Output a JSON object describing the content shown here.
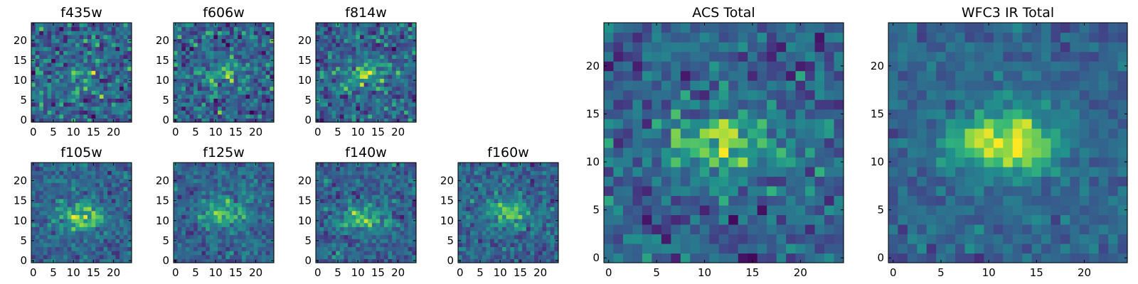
{
  "chart_data": {
    "type": "heatmap",
    "colormap": "viridis",
    "grid": 25,
    "panels": [
      {
        "title": "f435w",
        "xticks": [
          "0",
          "5",
          "10",
          "15",
          "20"
        ],
        "yticks": [
          "0",
          "5",
          "10",
          "15",
          "20"
        ],
        "peak": [
          12,
          12
        ],
        "noise": 0.95,
        "signal": 0.3,
        "seed": 11
      },
      {
        "title": "f606w",
        "xticks": [
          "0",
          "5",
          "10",
          "15",
          "20"
        ],
        "yticks": [
          "0",
          "5",
          "10",
          "15",
          "20"
        ],
        "peak": [
          12,
          12
        ],
        "noise": 0.9,
        "signal": 0.4,
        "seed": 23
      },
      {
        "title": "f814w",
        "xticks": [
          "0",
          "5",
          "10",
          "15",
          "20"
        ],
        "yticks": [
          "0",
          "5",
          "10",
          "15",
          "20"
        ],
        "peak": [
          12,
          12
        ],
        "noise": 0.85,
        "signal": 0.55,
        "seed": 37
      },
      {
        "title": "f105w",
        "xticks": [
          "0",
          "5",
          "10",
          "15",
          "20"
        ],
        "yticks": [
          "0",
          "5",
          "10",
          "15",
          "20"
        ],
        "peak": [
          12,
          11
        ],
        "noise": 0.6,
        "signal": 0.75,
        "seed": 41
      },
      {
        "title": "f125w",
        "xticks": [
          "0",
          "5",
          "10",
          "15",
          "20"
        ],
        "yticks": [
          "0",
          "5",
          "10",
          "15",
          "20"
        ],
        "peak": [
          12,
          12
        ],
        "noise": 0.6,
        "signal": 0.7,
        "seed": 53
      },
      {
        "title": "f140w",
        "xticks": [
          "0",
          "5",
          "10",
          "15",
          "20"
        ],
        "yticks": [
          "0",
          "5",
          "10",
          "15",
          "20"
        ],
        "peak": [
          11,
          11
        ],
        "noise": 0.65,
        "signal": 0.65,
        "seed": 67
      },
      {
        "title": "f160w",
        "xticks": [
          "0",
          "5",
          "10",
          "15",
          "20"
        ],
        "yticks": [
          "0",
          "5",
          "10",
          "15",
          "20"
        ],
        "peak": [
          12,
          12
        ],
        "noise": 0.65,
        "signal": 0.65,
        "seed": 79
      },
      {
        "title": "ACS Total",
        "xticks": [
          "0",
          "5",
          "10",
          "15",
          "20"
        ],
        "yticks": [
          "0",
          "5",
          "10",
          "15",
          "20"
        ],
        "peak": [
          12,
          12
        ],
        "noise": 0.75,
        "signal": 0.7,
        "seed": 83
      },
      {
        "title": "WFC3 IR Total",
        "xticks": [
          "0",
          "5",
          "10",
          "15",
          "20"
        ],
        "yticks": [
          "0",
          "5",
          "10",
          "15",
          "20"
        ],
        "peak": [
          12,
          12
        ],
        "noise": 0.45,
        "signal": 1.0,
        "seed": 97
      }
    ],
    "xlabel": "",
    "ylabel": "",
    "xlim": [
      0,
      24
    ],
    "ylim": [
      0,
      24
    ]
  }
}
